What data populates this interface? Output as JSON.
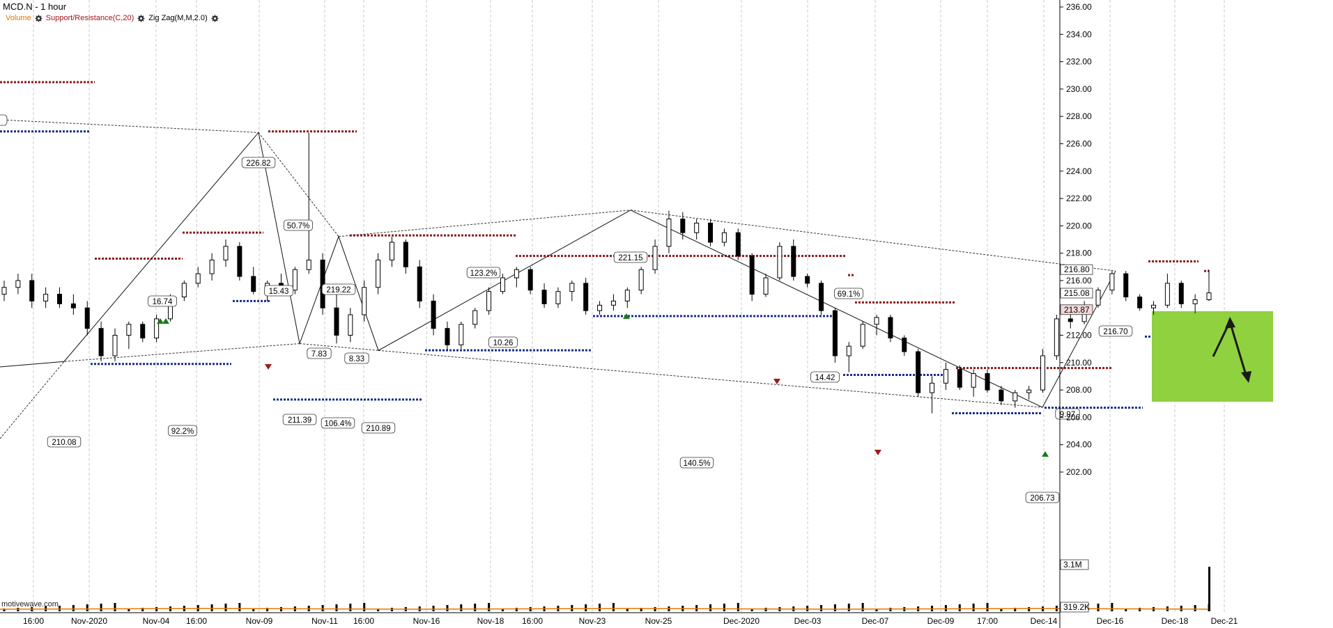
{
  "header": {
    "title": "MCD.N - 1 hour",
    "indicators": [
      {
        "label": "Volume",
        "color": "#e07800"
      },
      {
        "label": "Support/Resistance(C,20)",
        "color": "#a01818"
      },
      {
        "label": "Zig Zag(M,M,2.0)",
        "color": "#000000"
      }
    ]
  },
  "watermark": "motivewave.com",
  "colors": {
    "bull": "#ffffff",
    "bear": "#000000",
    "resistance": "#8b1a1a",
    "support": "#1a2f8b",
    "highlight": "#8fd13f",
    "price_label_bg": "#f2d8d8",
    "grid": "#c8c8c8"
  },
  "chart_data": {
    "type": "candlestick",
    "symbol": "MCD.N",
    "interval": "1 hour",
    "ylim": [
      200,
      237
    ],
    "y_ticks": [
      "202.00",
      "204.00",
      "206.00",
      "208.00",
      "210.00",
      "212.00",
      "214.00",
      "216.00",
      "218.00",
      "220.00",
      "222.00",
      "224.00",
      "226.00",
      "228.00",
      "230.00",
      "232.00",
      "234.00",
      "236.00"
    ],
    "x_labels": [
      "16:00",
      "Nov-2020",
      "Nov-04",
      "16:00",
      "Nov-09",
      "Nov-11",
      "16:00",
      "Nov-16",
      "Nov-18",
      "16:00",
      "Nov-23",
      "Nov-25",
      "Dec-2020",
      "Dec-03",
      "Dec-07",
      "Dec-09",
      "17:00",
      "Dec-14",
      "Dec-16",
      "Dec-18",
      "Dec-21"
    ],
    "price_labels": [
      {
        "text": "216.80",
        "value": 216.8
      },
      {
        "text": "215.08",
        "value": 215.08
      },
      {
        "text": "213.87",
        "value": 213.87
      }
    ],
    "volume_labels": [
      "3.1M",
      "319.2K"
    ],
    "zigzag_pivots": [
      {
        "label": "210.08",
        "value": 210.08
      },
      {
        "label": "226.82",
        "value": 226.82
      },
      {
        "label": "211.39",
        "value": 211.39
      },
      {
        "label": "219.22",
        "value": 219.22
      },
      {
        "label": "210.89",
        "value": 210.89
      },
      {
        "label": "221.15",
        "value": 221.15
      },
      {
        "label": "206.73",
        "value": 206.73
      },
      {
        "label": "216.70",
        "value": 216.7
      }
    ],
    "swing_labels": [
      "16.74",
      "15.43",
      "7.83",
      "8.33",
      "10.26",
      "14.42",
      "9.97"
    ],
    "ratio_labels": [
      "92.2%",
      "50.7%",
      "106.4%",
      "123.2%",
      "140.5%",
      "69.1%"
    ],
    "resistance_levels": [
      230.5,
      226.9,
      219.5,
      217.6,
      219.3,
      217.8,
      216.4,
      214.4,
      209.6,
      217.4,
      216.7
    ],
    "support_levels": [
      226.9,
      209.9,
      214.5,
      207.3,
      210.9,
      213.4,
      209.1,
      206.3,
      206.7,
      211.9,
      213.5
    ],
    "candles": [
      [
        215,
        216,
        214.5,
        215.5
      ],
      [
        215.5,
        216.5,
        215,
        216
      ],
      [
        216,
        216.5,
        214,
        214.5
      ],
      [
        214.5,
        215.5,
        214,
        215
      ],
      [
        215,
        215.5,
        214,
        214.3
      ],
      [
        214.3,
        215,
        213.5,
        214
      ],
      [
        214,
        214.5,
        212,
        212.5
      ],
      [
        212.5,
        213,
        210.1,
        210.5
      ],
      [
        210.5,
        212.5,
        210.1,
        212
      ],
      [
        212,
        213,
        211,
        212.8
      ],
      [
        212.8,
        213,
        211.5,
        211.8
      ],
      [
        211.8,
        213.5,
        211.5,
        213.2
      ],
      [
        213.2,
        215,
        213,
        214.8
      ],
      [
        214.8,
        216,
        214.5,
        215.8
      ],
      [
        215.8,
        217,
        215.5,
        216.5
      ],
      [
        216.5,
        218,
        216,
        217.5
      ],
      [
        217.5,
        219,
        217,
        218.5
      ],
      [
        218.5,
        218.8,
        216,
        216.3
      ],
      [
        216.3,
        217,
        215,
        215.2
      ],
      [
        215.2,
        216,
        214.5,
        215.8
      ],
      [
        215.8,
        216.5,
        215,
        215.3
      ],
      [
        215.3,
        217,
        215,
        216.8
      ],
      [
        216.8,
        226.8,
        216.5,
        217.5
      ],
      [
        217.5,
        218,
        213.5,
        214
      ],
      [
        214,
        215,
        211.4,
        212
      ],
      [
        212,
        214,
        211.5,
        213.5
      ],
      [
        213.5,
        216,
        213,
        215.5
      ],
      [
        215.5,
        218,
        215,
        217.5
      ],
      [
        217.5,
        219.2,
        217,
        218.8
      ],
      [
        218.8,
        219,
        216.5,
        217
      ],
      [
        217,
        217.5,
        214,
        214.5
      ],
      [
        214.5,
        215,
        212,
        212.5
      ],
      [
        212.5,
        213,
        210.9,
        211.3
      ],
      [
        211.3,
        213,
        211,
        212.8
      ],
      [
        212.8,
        214,
        212.5,
        213.8
      ],
      [
        213.8,
        215.5,
        213.5,
        215.2
      ],
      [
        215.2,
        216.5,
        215,
        216.2
      ],
      [
        216.2,
        217,
        215.5,
        216.8
      ],
      [
        216.8,
        217,
        215,
        215.3
      ],
      [
        215.3,
        215.8,
        214,
        214.3
      ],
      [
        214.3,
        215.5,
        214,
        215.2
      ],
      [
        215.2,
        216,
        214.5,
        215.8
      ],
      [
        215.8,
        216.2,
        213.5,
        213.8
      ],
      [
        213.8,
        214.5,
        213.5,
        214.2
      ],
      [
        214.2,
        215,
        213.8,
        214.5
      ],
      [
        214.5,
        215.5,
        214,
        215.3
      ],
      [
        215.3,
        217,
        215,
        216.8
      ],
      [
        216.8,
        219,
        216.5,
        218.5
      ],
      [
        218.5,
        221.1,
        218,
        220.5
      ],
      [
        220.5,
        221,
        219,
        219.5
      ],
      [
        219.5,
        220.5,
        219,
        220.2
      ],
      [
        220.2,
        220.5,
        218.5,
        218.8
      ],
      [
        218.8,
        219.8,
        218.5,
        219.5
      ],
      [
        219.5,
        219.8,
        217.5,
        217.8
      ],
      [
        217.8,
        218,
        214.5,
        215
      ],
      [
        215,
        216.5,
        214.8,
        216.2
      ],
      [
        216.2,
        218.8,
        216,
        218.5
      ],
      [
        218.5,
        219,
        216,
        216.3
      ],
      [
        216.3,
        216.5,
        215.5,
        215.8
      ],
      [
        215.8,
        216,
        213.5,
        213.8
      ],
      [
        213.8,
        214,
        210,
        210.5
      ],
      [
        210.5,
        211.5,
        209.3,
        211.2
      ],
      [
        211.2,
        213,
        211,
        212.8
      ],
      [
        212.8,
        213.5,
        212,
        213.3
      ],
      [
        213.3,
        213.5,
        211.5,
        211.8
      ],
      [
        211.8,
        212,
        210.5,
        210.8
      ],
      [
        210.8,
        211,
        207.5,
        207.8
      ],
      [
        207.8,
        209,
        206.3,
        208.5
      ],
      [
        208.5,
        210,
        208,
        209.5
      ],
      [
        209.5,
        209.8,
        208,
        208.2
      ],
      [
        208.2,
        209.5,
        207.5,
        209.2
      ],
      [
        209.2,
        209.5,
        207.8,
        208
      ],
      [
        208,
        208.3,
        206.9,
        207.2
      ],
      [
        207.2,
        208,
        206.7,
        207.8
      ],
      [
        207.8,
        208.3,
        207.3,
        208
      ],
      [
        208,
        211,
        207.8,
        210.5
      ],
      [
        210.5,
        213.5,
        210.2,
        213.2
      ],
      [
        213.2,
        214,
        212.5,
        213
      ],
      [
        213,
        214.5,
        212.8,
        214.2
      ],
      [
        214.2,
        215.5,
        214,
        215.3
      ],
      [
        215.3,
        216.7,
        215,
        216.5
      ],
      [
        216.5,
        216.7,
        214.5,
        214.8
      ],
      [
        214.8,
        215,
        213.8,
        214
      ],
      [
        214,
        214.5,
        213.5,
        214.2
      ],
      [
        214.2,
        216.5,
        214,
        215.8
      ],
      [
        215.8,
        216,
        214,
        214.3
      ],
      [
        214.3,
        215,
        213.6,
        214.6
      ],
      [
        214.6,
        216.8,
        214.5,
        215.1
      ]
    ]
  }
}
